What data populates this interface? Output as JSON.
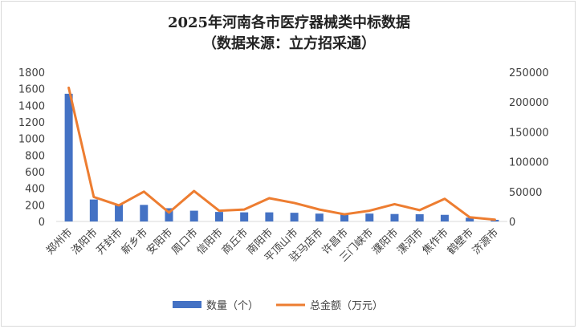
{
  "chart_data": {
    "type": "bar+line",
    "title": "2025年河南各市医疗器械类中标数据",
    "subtitle": "（数据来源：立方招采通）",
    "categories": [
      "郑州市",
      "洛阳市",
      "开封市",
      "新乡市",
      "安阳市",
      "周口市",
      "信阳市",
      "商丘市",
      "南阳市",
      "平顶山市",
      "驻马店市",
      "许昌市",
      "三门峡市",
      "濮阳市",
      "漯河市",
      "焦作市",
      "鹤壁市",
      "济源市"
    ],
    "series": [
      {
        "name": "数量（个）",
        "type": "bar",
        "axis": "left",
        "color": "#4472c4",
        "values": [
          1540,
          265,
          205,
          200,
          160,
          130,
          115,
          110,
          110,
          105,
          95,
          90,
          95,
          90,
          88,
          80,
          45,
          20
        ]
      },
      {
        "name": "总金额（万元）",
        "type": "line",
        "axis": "right",
        "color": "#ed7d31",
        "values": [
          224000,
          41000,
          27000,
          50000,
          15000,
          51000,
          18000,
          20000,
          39000,
          31000,
          20000,
          12000,
          18000,
          29000,
          19000,
          38000,
          7000,
          3000
        ]
      }
    ],
    "y_left": {
      "min": 0,
      "max": 1800,
      "ticks": [
        "0",
        "200",
        "400",
        "600",
        "800",
        "1000",
        "1200",
        "1400",
        "1600",
        "1800"
      ]
    },
    "y_right": {
      "min": 0,
      "max": 250000,
      "ticks": [
        "0",
        "50000",
        "100000",
        "150000",
        "200000",
        "250000"
      ]
    },
    "grid": false,
    "legend_position": "bottom"
  }
}
